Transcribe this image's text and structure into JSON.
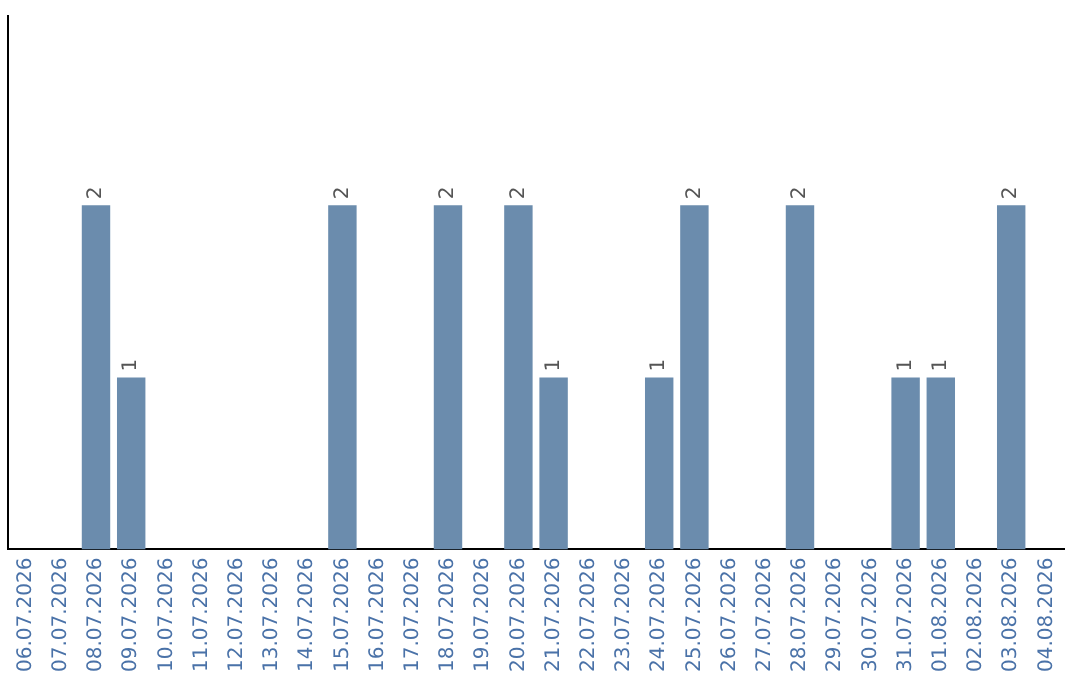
{
  "chart_data": {
    "type": "bar",
    "categories": [
      "06.07.2026",
      "07.07.2026",
      "08.07.2026",
      "09.07.2026",
      "10.07.2026",
      "11.07.2026",
      "12.07.2026",
      "13.07.2026",
      "14.07.2026",
      "15.07.2026",
      "16.07.2026",
      "17.07.2026",
      "18.07.2026",
      "19.07.2026",
      "20.07.2026",
      "21.07.2026",
      "22.07.2026",
      "23.07.2026",
      "24.07.2026",
      "25.07.2026",
      "26.07.2026",
      "27.07.2026",
      "28.07.2026",
      "29.07.2026",
      "30.07.2026",
      "31.07.2026",
      "01.08.2026",
      "02.08.2026",
      "03.08.2026",
      "04.08.2026"
    ],
    "values": [
      0,
      0,
      2,
      1,
      0,
      0,
      0,
      0,
      0,
      2,
      0,
      0,
      2,
      0,
      2,
      1,
      0,
      0,
      1,
      2,
      0,
      0,
      2,
      0,
      0,
      1,
      1,
      0,
      2,
      0
    ],
    "value_labels": [
      null,
      null,
      "2",
      "1",
      null,
      null,
      null,
      null,
      null,
      "2",
      null,
      null,
      "2",
      null,
      "2",
      "1",
      null,
      null,
      "1",
      "2",
      null,
      null,
      "2",
      null,
      null,
      "1",
      "1",
      null,
      "2",
      null
    ],
    "color": "#6b8cad",
    "grid": false,
    "legend": false,
    "tick_labels": "x"
  }
}
